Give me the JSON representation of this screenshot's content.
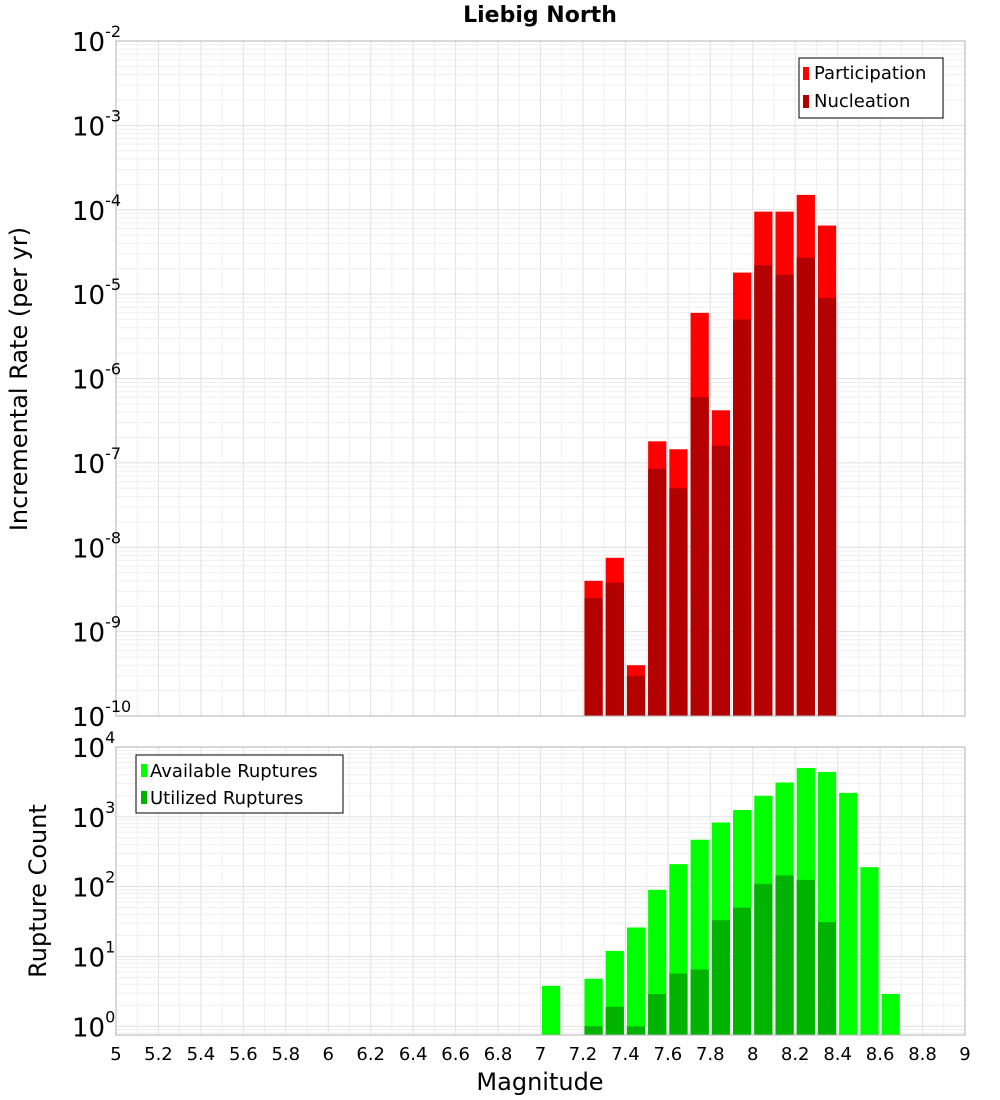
{
  "chart_data": [
    {
      "type": "bar",
      "title": "Liebig North",
      "xlabel": "",
      "ylabel": "Incremental Rate (per yr)",
      "yscale": "log",
      "ylim": [
        1e-10,
        0.01
      ],
      "xlim": [
        5,
        9
      ],
      "grid": true,
      "bin_width": 0.1,
      "legend_position": "top-right",
      "x": [
        7.25,
        7.35,
        7.45,
        7.55,
        7.65,
        7.75,
        7.85,
        7.95,
        8.05,
        8.15,
        8.25,
        8.35
      ],
      "series": [
        {
          "name": "Participation",
          "color": "#ff0000",
          "values": [
            4e-09,
            7.5e-09,
            4e-10,
            1.8e-07,
            1.45e-07,
            6e-06,
            4.2e-07,
            1.8e-05,
            9.5e-05,
            9.5e-05,
            0.00015,
            6.5e-05
          ]
        },
        {
          "name": "Nucleation",
          "color": "#b30000",
          "values": [
            2.5e-09,
            3.8e-09,
            3e-10,
            8.5e-08,
            5e-08,
            6e-07,
            1.6e-07,
            5e-06,
            2.2e-05,
            1.7e-05,
            2.7e-05,
            9e-06
          ]
        }
      ],
      "y_ticks": [
        {
          "base": "10",
          "exp": "-10",
          "value": 1e-10
        },
        {
          "base": "10",
          "exp": "-9",
          "value": 1e-09
        },
        {
          "base": "10",
          "exp": "-8",
          "value": 1e-08
        },
        {
          "base": "10",
          "exp": "-7",
          "value": 1e-07
        },
        {
          "base": "10",
          "exp": "-6",
          "value": 1e-06
        },
        {
          "base": "10",
          "exp": "-5",
          "value": 1e-05
        },
        {
          "base": "10",
          "exp": "-4",
          "value": 0.0001
        },
        {
          "base": "10",
          "exp": "-3",
          "value": 0.001
        },
        {
          "base": "10",
          "exp": "-2",
          "value": 0.01
        }
      ]
    },
    {
      "type": "bar",
      "title": "",
      "xlabel": "Magnitude",
      "ylabel": "Rupture Count",
      "yscale": "log",
      "ylim": [
        0.75,
        10000
      ],
      "xlim": [
        5,
        9
      ],
      "grid": true,
      "bin_width": 0.1,
      "legend_position": "top-left",
      "x": [
        7.05,
        7.25,
        7.35,
        7.45,
        7.55,
        7.65,
        7.75,
        7.85,
        7.95,
        8.05,
        8.15,
        8.25,
        8.35,
        8.45,
        8.55,
        8.65
      ],
      "series": [
        {
          "name": "Available Ruptures",
          "color": "#00ff00",
          "values": [
            3.8,
            4.8,
            12,
            26,
            90,
            210,
            470,
            830,
            1250,
            2000,
            3100,
            5000,
            4400,
            2200,
            190,
            2.9
          ]
        },
        {
          "name": "Utilized Ruptures",
          "color": "#00b300",
          "values": [
            null,
            1,
            1.9,
            1,
            2.9,
            5.7,
            6.5,
            33,
            50,
            110,
            145,
            125,
            31,
            null,
            null,
            null
          ]
        }
      ],
      "y_ticks": [
        {
          "base": "10",
          "exp": "0",
          "value": 1
        },
        {
          "base": "10",
          "exp": "1",
          "value": 10
        },
        {
          "base": "10",
          "exp": "2",
          "value": 100
        },
        {
          "base": "10",
          "exp": "3",
          "value": 1000
        },
        {
          "base": "10",
          "exp": "4",
          "value": 10000
        }
      ],
      "x_tick_labels": [
        "5",
        "5.2",
        "5.4",
        "5.6",
        "5.8",
        "6",
        "6.2",
        "6.4",
        "6.6",
        "6.8",
        "7",
        "7.2",
        "7.4",
        "7.6",
        "7.8",
        "8",
        "8.2",
        "8.4",
        "8.6",
        "8.8",
        "9"
      ],
      "x_ticks": [
        5,
        5.2,
        5.4,
        5.6,
        5.8,
        6,
        6.2,
        6.4,
        6.6,
        6.8,
        7,
        7.2,
        7.4,
        7.6,
        7.8,
        8,
        8.2,
        8.4,
        8.6,
        8.8,
        9
      ]
    }
  ]
}
